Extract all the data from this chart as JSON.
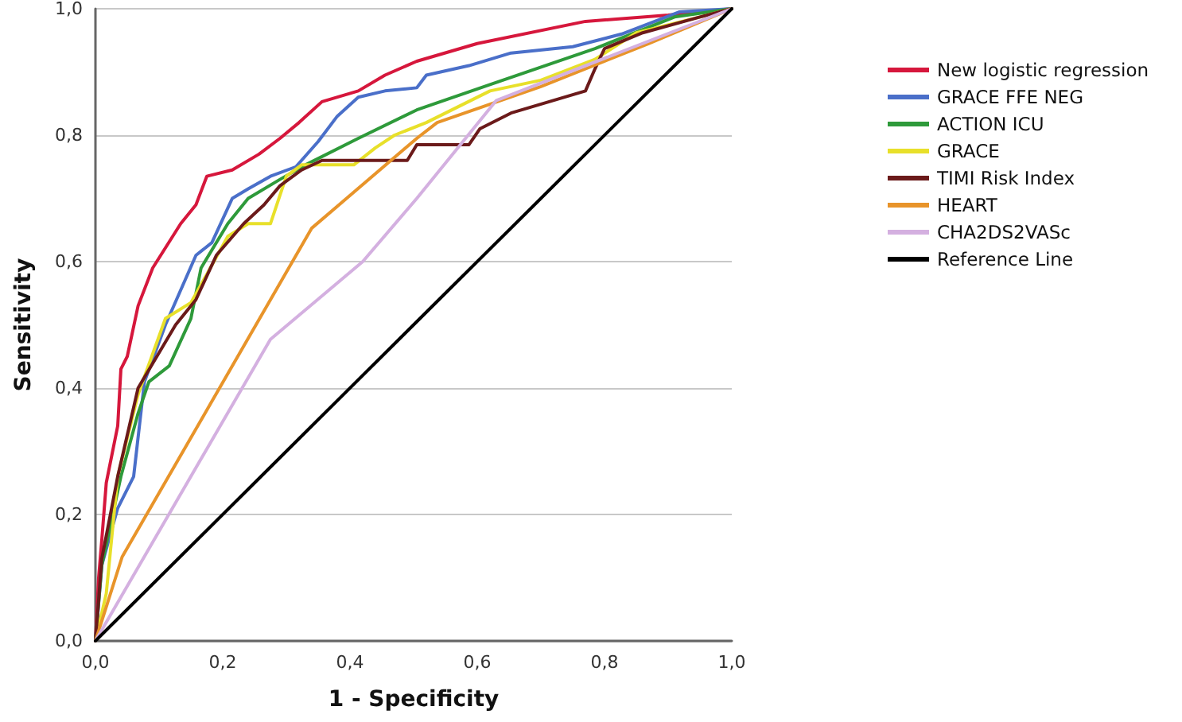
{
  "chart_data": {
    "type": "line",
    "xlabel": "1 - Specificity",
    "ylabel": "Sensitivity",
    "xlim": [
      0,
      1
    ],
    "ylim": [
      0,
      1
    ],
    "xticks": [
      {
        "value": 0,
        "label": "0,0"
      },
      {
        "value": 0.2,
        "label": "0,2"
      },
      {
        "value": 0.4,
        "label": "0,4"
      },
      {
        "value": 0.6,
        "label": "0,6"
      },
      {
        "value": 0.8,
        "label": "0,8"
      },
      {
        "value": 1,
        "label": "1,0"
      }
    ],
    "yticks": [
      {
        "value": 0,
        "label": "0,0"
      },
      {
        "value": 0.2,
        "label": "0,2"
      },
      {
        "value": 0.4,
        "label": "0,4"
      },
      {
        "value": 0.6,
        "label": "0,6"
      },
      {
        "value": 0.8,
        "label": "0,8"
      },
      {
        "value": 1,
        "label": "1,0"
      }
    ],
    "grid": "y",
    "legend": "right",
    "marker": "none",
    "line_style": "solid",
    "series": [
      {
        "name": "New logistic regression",
        "color": "#d6173c",
        "x": [
          0,
          0.005,
          0.01,
          0.017,
          0.035,
          0.04,
          0.05,
          0.067,
          0.09,
          0.134,
          0.158,
          0.175,
          0.215,
          0.257,
          0.29,
          0.32,
          0.356,
          0.413,
          0.455,
          0.505,
          0.6,
          0.77,
          0.9,
          1
        ],
        "values": [
          0,
          0.1,
          0.16,
          0.25,
          0.34,
          0.43,
          0.45,
          0.53,
          0.59,
          0.66,
          0.69,
          0.735,
          0.745,
          0.77,
          0.795,
          0.82,
          0.853,
          0.87,
          0.895,
          0.917,
          0.945,
          0.98,
          0.99,
          1
        ]
      },
      {
        "name": "GRACE FFE NEG",
        "color": "#4a6fc9",
        "x": [
          0,
          0.01,
          0.035,
          0.06,
          0.077,
          0.11,
          0.158,
          0.183,
          0.215,
          0.24,
          0.275,
          0.315,
          0.35,
          0.38,
          0.413,
          0.455,
          0.505,
          0.52,
          0.587,
          0.653,
          0.75,
          0.827,
          0.918,
          1
        ],
        "values": [
          0,
          0.12,
          0.21,
          0.26,
          0.41,
          0.5,
          0.61,
          0.63,
          0.7,
          0.715,
          0.735,
          0.75,
          0.79,
          0.83,
          0.86,
          0.87,
          0.875,
          0.895,
          0.91,
          0.93,
          0.94,
          0.96,
          0.995,
          1
        ]
      },
      {
        "name": "ACTION ICU",
        "color": "#2e9a3a",
        "x": [
          0,
          0.01,
          0.04,
          0.067,
          0.084,
          0.116,
          0.15,
          0.166,
          0.208,
          0.24,
          0.29,
          0.33,
          0.413,
          0.505,
          0.62,
          0.785,
          0.91,
          1
        ],
        "values": [
          0,
          0.12,
          0.26,
          0.36,
          0.41,
          0.435,
          0.51,
          0.59,
          0.66,
          0.7,
          0.73,
          0.753,
          0.795,
          0.84,
          0.88,
          0.937,
          0.987,
          1
        ]
      },
      {
        "name": "GRACE",
        "color": "#e8e02a",
        "x": [
          0,
          0.017,
          0.035,
          0.067,
          0.11,
          0.15,
          0.175,
          0.208,
          0.24,
          0.275,
          0.3,
          0.324,
          0.406,
          0.44,
          0.47,
          0.52,
          0.62,
          0.7,
          0.785,
          0.85,
          0.95,
          1
        ],
        "values": [
          0,
          0.075,
          0.26,
          0.39,
          0.51,
          0.535,
          0.58,
          0.64,
          0.66,
          0.66,
          0.735,
          0.753,
          0.753,
          0.78,
          0.8,
          0.82,
          0.87,
          0.887,
          0.92,
          0.962,
          0.987,
          1
        ]
      },
      {
        "name": "TIMI Risk Index",
        "color": "#6b1a1a",
        "x": [
          0,
          0.01,
          0.035,
          0.067,
          0.126,
          0.158,
          0.19,
          0.233,
          0.265,
          0.29,
          0.324,
          0.356,
          0.49,
          0.505,
          0.587,
          0.604,
          0.653,
          0.77,
          0.785,
          0.8,
          0.86,
          0.95,
          1
        ],
        "values": [
          0,
          0.13,
          0.26,
          0.4,
          0.5,
          0.54,
          0.61,
          0.66,
          0.69,
          0.72,
          0.745,
          0.76,
          0.76,
          0.785,
          0.785,
          0.81,
          0.835,
          0.87,
          0.905,
          0.937,
          0.962,
          0.987,
          1
        ]
      },
      {
        "name": "HEART",
        "color": "#e8942a",
        "x": [
          0,
          0.042,
          0.34,
          0.505,
          0.537,
          0.7,
          0.87,
          1
        ],
        "values": [
          0,
          0.133,
          0.653,
          0.795,
          0.82,
          0.877,
          0.945,
          1
        ]
      },
      {
        "name": "CHA2DS2VASc",
        "color": "#d4b0e0",
        "x": [
          0,
          0.275,
          0.42,
          0.505,
          0.63,
          1
        ],
        "values": [
          0,
          0.477,
          0.6,
          0.7,
          0.855,
          1
        ]
      },
      {
        "name": "Reference Line",
        "color": "#000000",
        "x": [
          0,
          1
        ],
        "values": [
          0,
          1
        ]
      }
    ]
  }
}
